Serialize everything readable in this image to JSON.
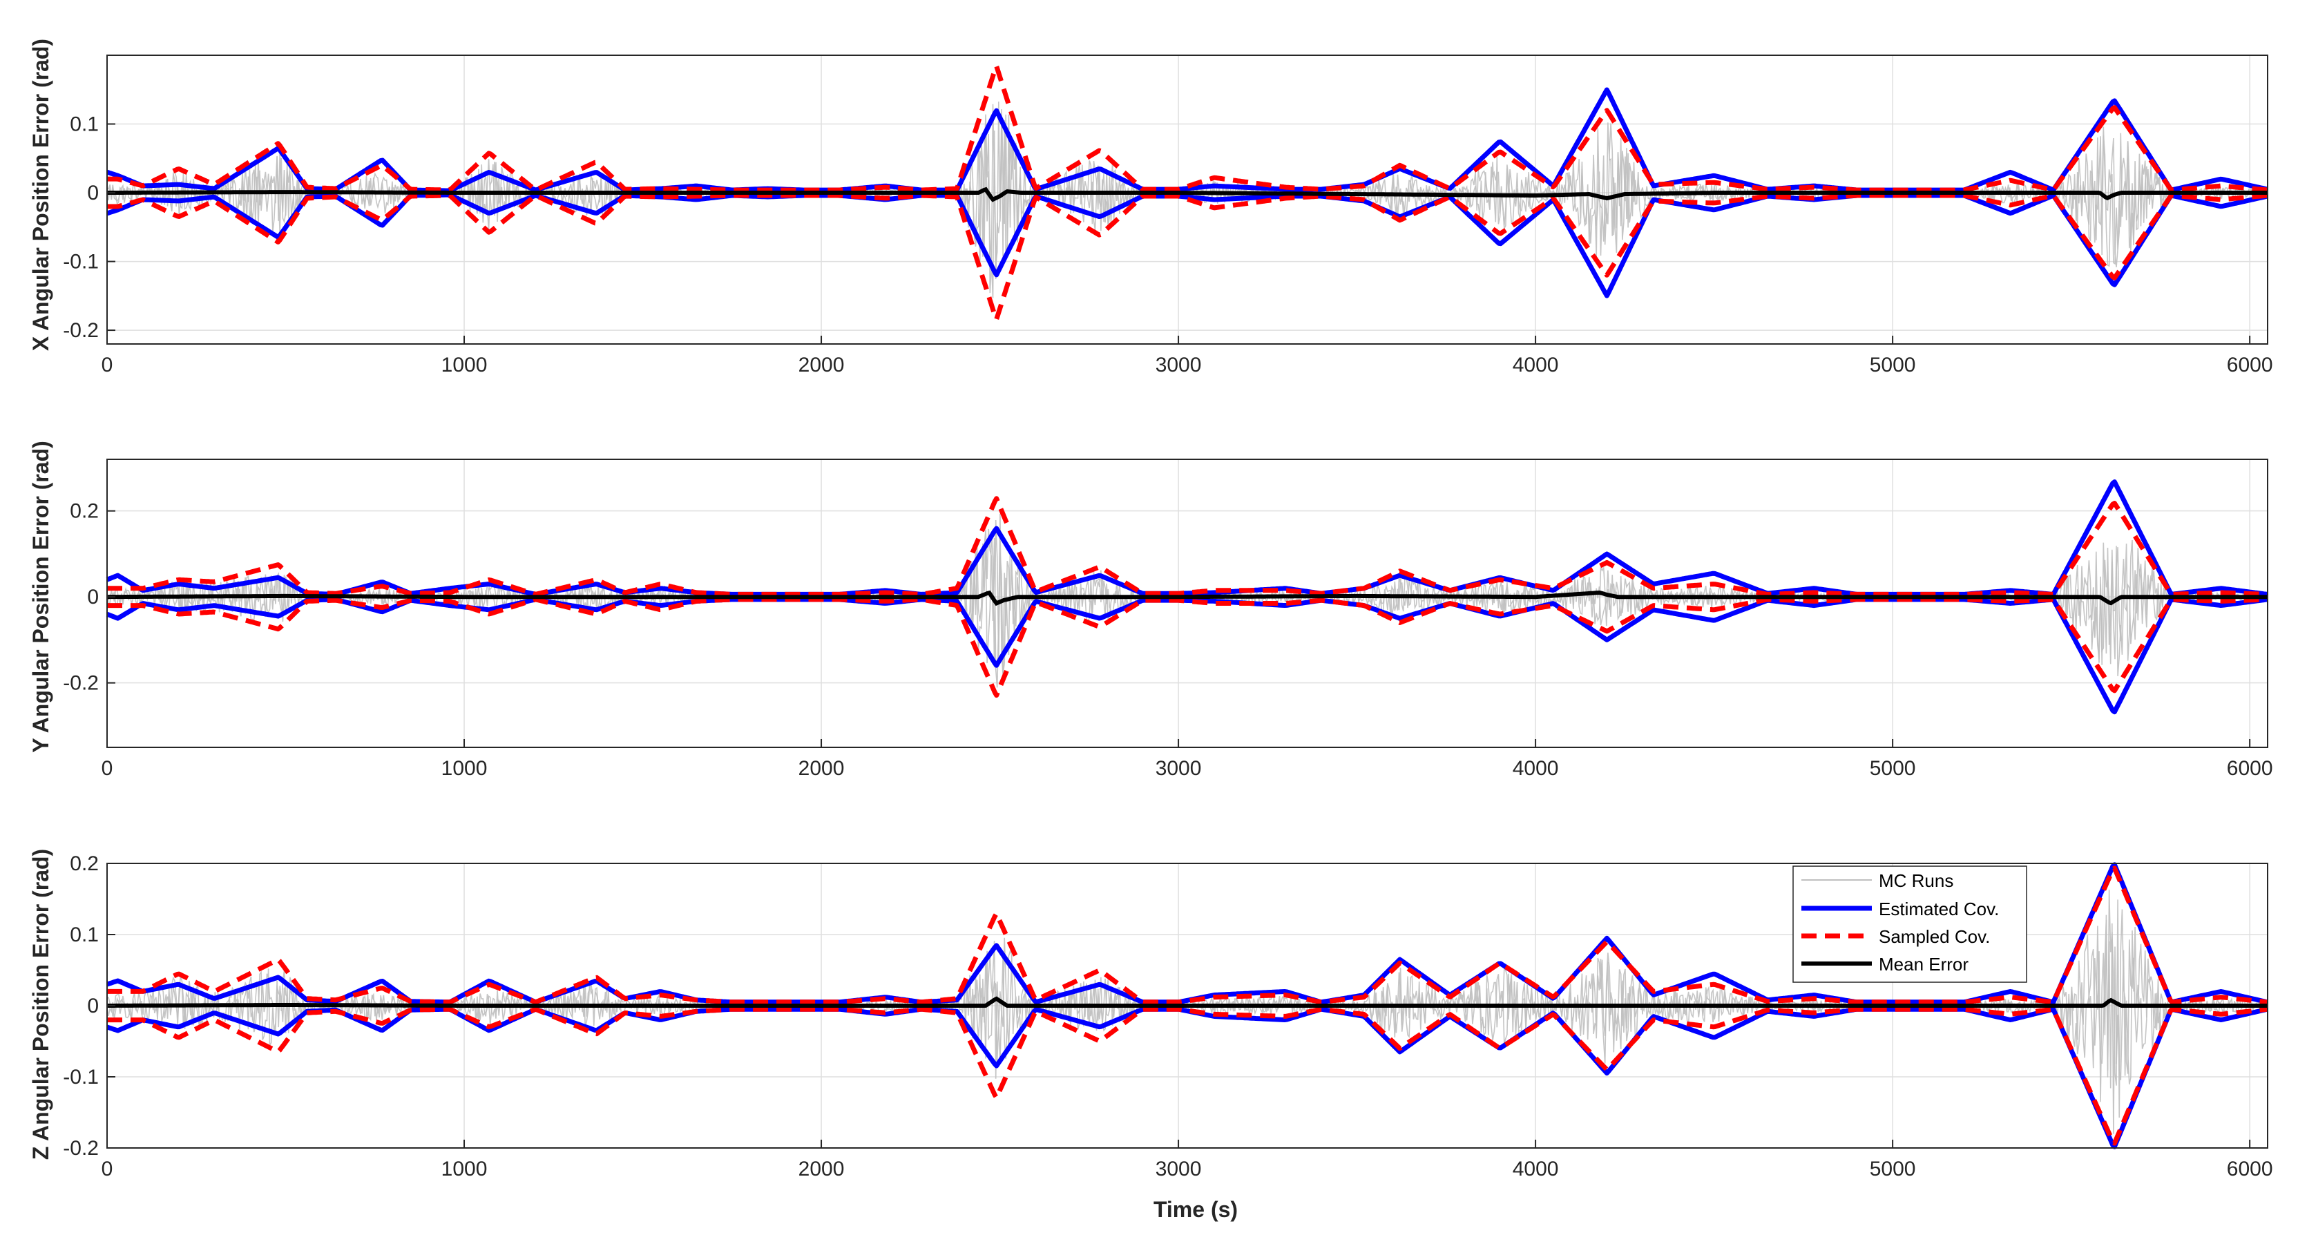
{
  "chart_data": [
    {
      "type": "line",
      "ylabel": "X Angular Position Error (rad)",
      "xlabel": "",
      "xlim": [
        0,
        6050
      ],
      "ylim": [
        -0.22,
        0.2
      ],
      "xticks": [
        0,
        1000,
        2000,
        3000,
        4000,
        5000,
        6000
      ],
      "yticks": [
        -0.2,
        -0.1,
        0,
        0.1
      ],
      "ytick_labels": [
        "-0.2",
        "-0.1",
        "0",
        "0.1"
      ],
      "grid": true,
      "series": [
        {
          "name": "Estimated Cov.",
          "color": "#0000ff",
          "style": "solid",
          "x": [
            0,
            30,
            100,
            200,
            300,
            480,
            560,
            640,
            770,
            850,
            960,
            1070,
            1200,
            1370,
            1450,
            1550,
            1650,
            1750,
            1850,
            1950,
            2050,
            2180,
            2280,
            2380,
            2490,
            2600,
            2780,
            2900,
            3000,
            3100,
            3300,
            3400,
            3520,
            3620,
            3760,
            3900,
            4050,
            4200,
            4330,
            4500,
            4650,
            4780,
            4900,
            5000,
            5100,
            5200,
            5330,
            5450,
            5620,
            5780,
            5920,
            6050
          ],
          "values": [
            0.03,
            0.025,
            0.01,
            0.012,
            0.006,
            0.065,
            0.006,
            0.005,
            0.048,
            0.004,
            0.003,
            0.03,
            0.004,
            0.03,
            0.004,
            0.006,
            0.01,
            0.004,
            0.006,
            0.004,
            0.004,
            0.01,
            0.004,
            0.004,
            0.12,
            0.005,
            0.035,
            0.005,
            0.005,
            0.01,
            0.005,
            0.005,
            0.012,
            0.035,
            0.006,
            0.075,
            0.01,
            0.15,
            0.01,
            0.025,
            0.005,
            0.01,
            0.004,
            0.004,
            0.004,
            0.004,
            0.03,
            0.004,
            0.135,
            0.004,
            0.02,
            0.005
          ]
        },
        {
          "name": "Sampled Cov.",
          "color": "#ff0000",
          "style": "dashed",
          "x": [
            0,
            30,
            100,
            200,
            300,
            480,
            560,
            640,
            770,
            850,
            960,
            1070,
            1200,
            1370,
            1450,
            1550,
            1650,
            1750,
            1850,
            1950,
            2050,
            2180,
            2280,
            2380,
            2490,
            2600,
            2780,
            2900,
            3000,
            3100,
            3300,
            3400,
            3520,
            3620,
            3760,
            3900,
            4050,
            4200,
            4330,
            4500,
            4650,
            4780,
            4900,
            5000,
            5100,
            5200,
            5330,
            5450,
            5620,
            5780,
            5920,
            6050
          ],
          "values": [
            0.02,
            0.02,
            0.01,
            0.035,
            0.012,
            0.072,
            0.008,
            0.006,
            0.04,
            0.005,
            0.004,
            0.058,
            0.004,
            0.045,
            0.005,
            0.006,
            0.005,
            0.004,
            0.004,
            0.004,
            0.004,
            0.008,
            0.004,
            0.006,
            0.185,
            0.006,
            0.062,
            0.005,
            0.005,
            0.022,
            0.008,
            0.005,
            0.01,
            0.04,
            0.006,
            0.06,
            0.008,
            0.12,
            0.012,
            0.015,
            0.005,
            0.008,
            0.004,
            0.004,
            0.004,
            0.004,
            0.018,
            0.004,
            0.125,
            0.004,
            0.01,
            0.004
          ]
        },
        {
          "name": "Mean Error",
          "color": "#000000",
          "style": "solid",
          "x": [
            0,
            500,
            1000,
            1500,
            2000,
            2440,
            2460,
            2480,
            2500,
            2520,
            2560,
            3000,
            3500,
            4000,
            4150,
            4200,
            4250,
            4500,
            5000,
            5580,
            5600,
            5620,
            5640,
            6050
          ],
          "values": [
            0,
            0.001,
            0,
            0,
            0,
            0,
            0.005,
            -0.01,
            -0.005,
            0.002,
            0,
            0,
            -0.002,
            -0.004,
            -0.002,
            -0.008,
            -0.002,
            0,
            0,
            0,
            -0.008,
            -0.003,
            0,
            0
          ]
        }
      ]
    },
    {
      "type": "line",
      "ylabel": "Y Angular Position Error (rad)",
      "xlabel": "",
      "xlim": [
        0,
        6050
      ],
      "ylim": [
        -0.35,
        0.32
      ],
      "xticks": [
        0,
        1000,
        2000,
        3000,
        4000,
        5000,
        6000
      ],
      "yticks": [
        -0.2,
        0,
        0.2
      ],
      "ytick_labels": [
        "-0.2",
        "0",
        "0.2"
      ],
      "grid": true,
      "series": [
        {
          "name": "Estimated Cov.",
          "color": "#0000ff",
          "style": "solid",
          "x": [
            0,
            30,
            100,
            200,
            300,
            480,
            560,
            640,
            770,
            850,
            960,
            1070,
            1200,
            1370,
            1450,
            1550,
            1650,
            1750,
            1850,
            1950,
            2050,
            2180,
            2280,
            2380,
            2490,
            2600,
            2780,
            2900,
            3000,
            3100,
            3300,
            3400,
            3520,
            3620,
            3760,
            3900,
            4050,
            4200,
            4330,
            4500,
            4650,
            4780,
            4900,
            5000,
            5100,
            5200,
            5330,
            5450,
            5620,
            5780,
            5920,
            6050
          ],
          "values": [
            0.04,
            0.05,
            0.015,
            0.03,
            0.02,
            0.045,
            0.008,
            0.006,
            0.035,
            0.008,
            0.02,
            0.03,
            0.006,
            0.03,
            0.01,
            0.02,
            0.01,
            0.006,
            0.006,
            0.006,
            0.006,
            0.015,
            0.006,
            0.01,
            0.16,
            0.01,
            0.05,
            0.008,
            0.008,
            0.01,
            0.02,
            0.008,
            0.02,
            0.05,
            0.015,
            0.045,
            0.015,
            0.1,
            0.03,
            0.055,
            0.008,
            0.02,
            0.006,
            0.006,
            0.006,
            0.006,
            0.015,
            0.006,
            0.27,
            0.006,
            0.02,
            0.006
          ]
        },
        {
          "name": "Sampled Cov.",
          "color": "#ff0000",
          "style": "dashed",
          "x": [
            0,
            30,
            100,
            200,
            300,
            480,
            560,
            640,
            770,
            850,
            960,
            1070,
            1200,
            1370,
            1450,
            1550,
            1650,
            1750,
            1850,
            1950,
            2050,
            2180,
            2280,
            2380,
            2490,
            2600,
            2780,
            2900,
            3000,
            3100,
            3300,
            3400,
            3520,
            3620,
            3760,
            3900,
            4050,
            4200,
            4330,
            4500,
            4650,
            4780,
            4900,
            5000,
            5100,
            5200,
            5330,
            5450,
            5620,
            5780,
            5920,
            6050
          ],
          "values": [
            0.02,
            0.02,
            0.02,
            0.04,
            0.035,
            0.075,
            0.01,
            0.008,
            0.025,
            0.008,
            0.01,
            0.04,
            0.006,
            0.04,
            0.01,
            0.03,
            0.01,
            0.006,
            0.006,
            0.006,
            0.006,
            0.01,
            0.006,
            0.02,
            0.23,
            0.012,
            0.07,
            0.008,
            0.008,
            0.015,
            0.015,
            0.008,
            0.02,
            0.06,
            0.015,
            0.04,
            0.02,
            0.08,
            0.02,
            0.03,
            0.006,
            0.01,
            0.006,
            0.006,
            0.006,
            0.006,
            0.01,
            0.006,
            0.22,
            0.006,
            0.01,
            0.006
          ]
        },
        {
          "name": "Mean Error",
          "color": "#000000",
          "style": "solid",
          "x": [
            0,
            500,
            1000,
            1500,
            2000,
            2440,
            2470,
            2490,
            2510,
            2550,
            3000,
            3500,
            4000,
            4180,
            4200,
            4230,
            4500,
            5000,
            5580,
            5610,
            5640,
            6050
          ],
          "values": [
            0,
            0.002,
            0,
            0,
            0,
            0,
            0.01,
            -0.015,
            -0.008,
            0,
            0,
            0.002,
            0,
            0.01,
            0.005,
            0,
            0,
            0,
            0,
            -0.015,
            0,
            0
          ]
        }
      ]
    },
    {
      "type": "line",
      "ylabel": "Z Angular Position Error (rad)",
      "xlabel": "Time (s)",
      "xlim": [
        0,
        6050
      ],
      "ylim": [
        -0.2,
        0.2
      ],
      "xticks": [
        0,
        1000,
        2000,
        3000,
        4000,
        5000,
        6000
      ],
      "yticks": [
        -0.2,
        -0.1,
        0,
        0.1,
        0.2
      ],
      "ytick_labels": [
        "-0.2",
        "-0.1",
        "0",
        "0.1",
        "0.2"
      ],
      "grid": true,
      "legend_position": "top-right",
      "series": [
        {
          "name": "MC Runs",
          "color": "#bfbfbf",
          "style": "solid"
        },
        {
          "name": "Estimated Cov.",
          "color": "#0000ff",
          "style": "solid",
          "x": [
            0,
            30,
            100,
            200,
            300,
            480,
            560,
            640,
            770,
            850,
            960,
            1070,
            1200,
            1370,
            1450,
            1550,
            1650,
            1750,
            1850,
            1950,
            2050,
            2180,
            2280,
            2380,
            2490,
            2600,
            2780,
            2900,
            3000,
            3100,
            3300,
            3400,
            3520,
            3620,
            3760,
            3900,
            4050,
            4200,
            4330,
            4500,
            4650,
            4780,
            4900,
            5000,
            5100,
            5200,
            5330,
            5450,
            5620,
            5780,
            5920,
            6050
          ],
          "values": [
            0.03,
            0.035,
            0.02,
            0.03,
            0.01,
            0.04,
            0.008,
            0.006,
            0.035,
            0.006,
            0.005,
            0.035,
            0.005,
            0.035,
            0.01,
            0.02,
            0.008,
            0.005,
            0.005,
            0.005,
            0.005,
            0.012,
            0.005,
            0.008,
            0.085,
            0.005,
            0.03,
            0.005,
            0.005,
            0.015,
            0.02,
            0.005,
            0.015,
            0.065,
            0.015,
            0.06,
            0.01,
            0.095,
            0.015,
            0.045,
            0.008,
            0.015,
            0.005,
            0.005,
            0.005,
            0.005,
            0.02,
            0.005,
            0.2,
            0.005,
            0.02,
            0.005
          ]
        },
        {
          "name": "Sampled Cov.",
          "color": "#ff0000",
          "style": "dashed",
          "x": [
            0,
            30,
            100,
            200,
            300,
            480,
            560,
            640,
            770,
            850,
            960,
            1070,
            1200,
            1370,
            1450,
            1550,
            1650,
            1750,
            1850,
            1950,
            2050,
            2180,
            2280,
            2380,
            2490,
            2600,
            2780,
            2900,
            3000,
            3100,
            3300,
            3400,
            3520,
            3620,
            3760,
            3900,
            4050,
            4200,
            4330,
            4500,
            4650,
            4780,
            4900,
            5000,
            5100,
            5200,
            5330,
            5450,
            5620,
            5780,
            5920,
            6050
          ],
          "values": [
            0.02,
            0.02,
            0.02,
            0.045,
            0.02,
            0.065,
            0.01,
            0.008,
            0.025,
            0.006,
            0.005,
            0.03,
            0.005,
            0.04,
            0.01,
            0.015,
            0.008,
            0.005,
            0.005,
            0.005,
            0.005,
            0.01,
            0.005,
            0.01,
            0.13,
            0.008,
            0.05,
            0.005,
            0.005,
            0.012,
            0.015,
            0.005,
            0.012,
            0.06,
            0.012,
            0.06,
            0.012,
            0.09,
            0.02,
            0.03,
            0.006,
            0.01,
            0.005,
            0.005,
            0.005,
            0.005,
            0.012,
            0.005,
            0.195,
            0.005,
            0.012,
            0.005
          ]
        },
        {
          "name": "Mean Error",
          "color": "#000000",
          "style": "solid",
          "x": [
            0,
            500,
            1000,
            1500,
            2000,
            2460,
            2490,
            2520,
            3000,
            3500,
            4000,
            4500,
            5000,
            5590,
            5610,
            5640,
            6050
          ],
          "values": [
            0,
            0.001,
            0,
            0,
            0,
            0,
            0.01,
            0,
            0,
            0,
            0,
            0,
            0,
            0,
            0.008,
            0,
            0
          ]
        }
      ]
    }
  ]
}
